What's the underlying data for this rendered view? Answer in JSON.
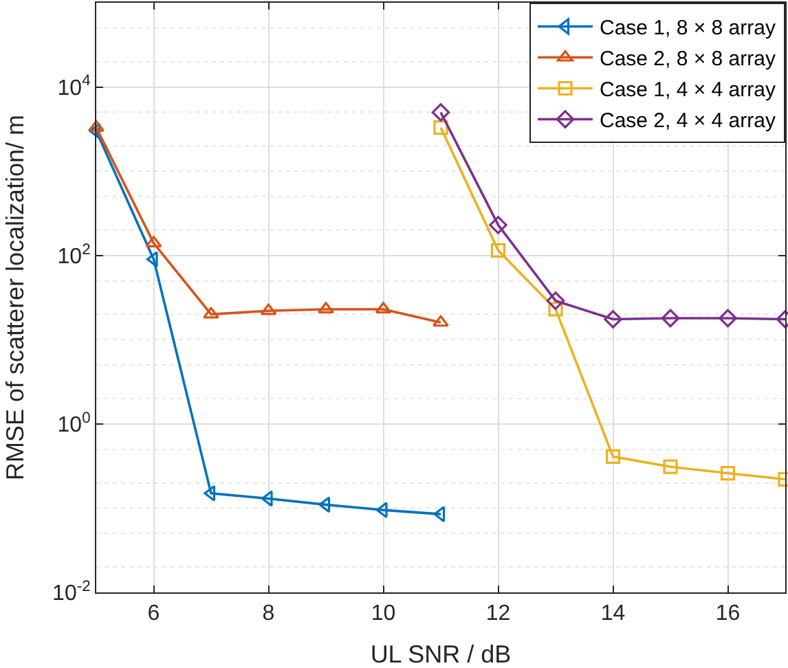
{
  "chart_data": {
    "type": "line",
    "xlabel": "UL SNR / dB",
    "ylabel": "RMSE of scatterer localization/ m",
    "xlim": [
      5,
      17
    ],
    "xticks": [
      6,
      8,
      10,
      12,
      14,
      16
    ],
    "ylim": [
      0.01,
      100000
    ],
    "yticks": [
      {
        "value": 0.01,
        "label": "10$^{-2}$"
      },
      {
        "value": 1,
        "label": "10$^{0}$"
      },
      {
        "value": 100,
        "label": "10$^{2}$"
      },
      {
        "value": 10000,
        "label": "10$^{4}$"
      }
    ],
    "log": "y",
    "grid": true,
    "legend": "top right",
    "series": [
      {
        "name": "Case 1, 8 × 8 array",
        "color": "#0072bd",
        "marker": "triangle-left",
        "x": [
          5,
          6,
          7,
          8,
          9,
          10,
          11
        ],
        "values": [
          3000,
          90,
          0.15,
          0.13,
          0.11,
          0.095,
          0.085
        ]
      },
      {
        "name": "Case 2, 8 × 8 array",
        "color": "#d95319",
        "marker": "triangle",
        "x": [
          5,
          6,
          7,
          8,
          9,
          10,
          11
        ],
        "values": [
          3300,
          140,
          20,
          22,
          23,
          23,
          16
        ]
      },
      {
        "name": "Case 1, 4 × 4 array",
        "color": "#edb120",
        "marker": "square",
        "x": [
          11,
          12,
          13,
          14,
          15,
          16,
          17
        ],
        "values": [
          3300,
          115,
          23,
          0.41,
          0.31,
          0.26,
          0.22
        ]
      },
      {
        "name": "Case 2, 4 × 4 array",
        "color": "#7e2f8e",
        "marker": "diamond",
        "x": [
          11,
          12,
          13,
          14,
          15,
          16,
          17
        ],
        "values": [
          5000,
          230,
          29,
          17.5,
          18,
          18,
          17.5
        ]
      }
    ]
  }
}
